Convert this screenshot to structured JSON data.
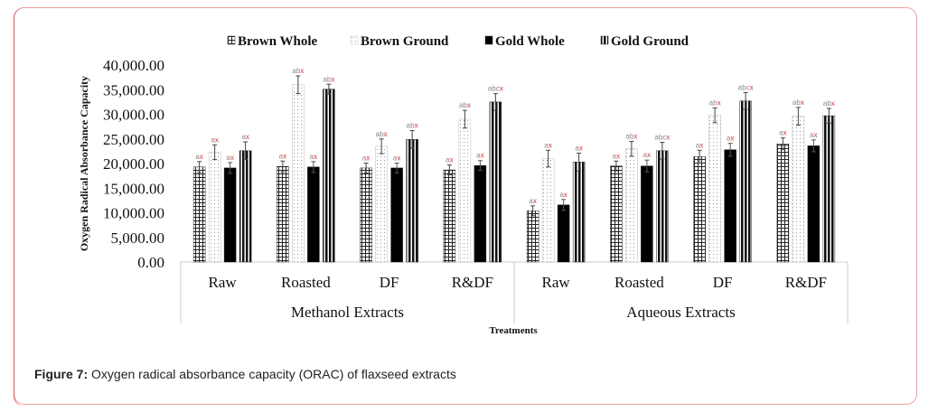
{
  "caption": {
    "label": "Figure 7:",
    "text": " Oxygen radical absorbance capacity (ORAC) of flaxseed extracts"
  },
  "chart_data": {
    "type": "bar",
    "title": "",
    "xlabel": "Treatments",
    "ylabel": "Oxygen Radical Absorbance Capacity",
    "ylim": [
      0,
      40000
    ],
    "yticks": [
      "0.00",
      "5,000.00",
      "10,000.00",
      "15,000.00",
      "20,000.00",
      "25,000.00",
      "30,000.00",
      "35,000.00",
      "40,000.00"
    ],
    "ytick_values": [
      0,
      5000,
      10000,
      15000,
      20000,
      25000,
      30000,
      35000,
      40000
    ],
    "grid": false,
    "legend_position": "top",
    "groups": [
      {
        "name": "Methanol Extracts",
        "categories": [
          "Raw",
          "Roasted",
          "DF",
          "R&DF"
        ]
      },
      {
        "name": "Aqueous Extracts",
        "categories": [
          "Raw",
          "Roasted",
          "DF",
          "R&DF"
        ]
      }
    ],
    "categories": [
      "Methanol Raw",
      "Methanol Roasted",
      "Methanol DF",
      "Methanol R&DF",
      "Aqueous Raw",
      "Aqueous Roasted",
      "Aqueous DF",
      "Aqueous R&DF"
    ],
    "series": [
      {
        "name": "Brown Whole",
        "pattern": "grid",
        "values": [
          19300,
          19400,
          19100,
          18700,
          10400,
          19500,
          21400,
          24000
        ],
        "errors": [
          1100,
          1100,
          1000,
          1000,
          1000,
          1000,
          1300,
          1200
        ],
        "letters": [
          "a",
          "a",
          "a",
          "a",
          "a",
          "a",
          "a",
          "a"
        ]
      },
      {
        "name": "Brown Ground",
        "pattern": "dots",
        "values": [
          22300,
          36000,
          23500,
          29000,
          21000,
          23000,
          29800,
          29600
        ],
        "errors": [
          1500,
          1800,
          1500,
          1800,
          1700,
          1500,
          1500,
          1800
        ],
        "letters": [
          "a",
          "ab",
          "ab",
          "ab",
          "a",
          "ab",
          "ab",
          "ab"
        ]
      },
      {
        "name": "Gold  Whole",
        "pattern": "solid",
        "values": [
          19100,
          19300,
          19100,
          19600,
          11600,
          19500,
          22800,
          23600
        ],
        "errors": [
          1100,
          1100,
          1000,
          1000,
          1100,
          1200,
          1300,
          1200
        ],
        "letters": [
          "a",
          "a",
          "a",
          "a",
          "a",
          "a",
          "a",
          "a"
        ]
      },
      {
        "name": "Gold  Ground",
        "pattern": "vstripes",
        "values": [
          22600,
          35100,
          24900,
          32500,
          20300,
          22600,
          32700,
          29700
        ],
        "errors": [
          1800,
          1000,
          1800,
          1700,
          1800,
          1700,
          1700,
          1500
        ],
        "letters": [
          "a",
          "ab",
          "ab",
          "abc",
          "a",
          "abc",
          "abc",
          "ab"
        ]
      }
    ],
    "letter_suffix": "x",
    "letter_color": "#888888",
    "suffix_color": "#e03030"
  }
}
